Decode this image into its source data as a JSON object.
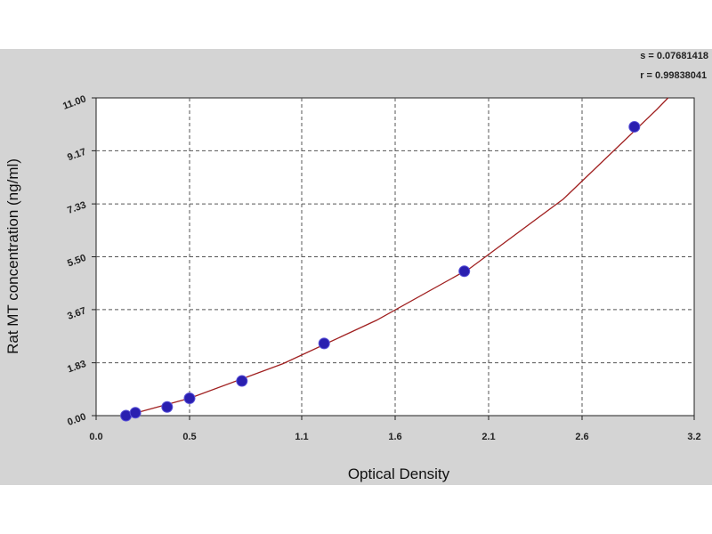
{
  "stats": {
    "s_line": "s = 0.07681418",
    "r_line": "r = 0.99838041"
  },
  "chart_data": {
    "type": "scatter",
    "title": "",
    "xlabel": "Optical Density",
    "ylabel": "Rat MT concentration (ng/ml)",
    "xlim": [
      0.0,
      3.2
    ],
    "ylim": [
      0.0,
      11.0
    ],
    "xticks": [
      0.0,
      0.5,
      1.1,
      1.6,
      2.1,
      2.6,
      3.2
    ],
    "xtick_labels": [
      "0.0",
      "0.5",
      "1.1",
      "1.6",
      "2.1",
      "2.6",
      "3.2"
    ],
    "yticks": [
      0.0,
      1.83,
      3.67,
      5.5,
      7.33,
      9.17,
      11.0
    ],
    "ytick_labels": [
      "0.00",
      "1.83",
      "3.67",
      "5.50",
      "7.33",
      "9.17",
      "11.00"
    ],
    "grid": true,
    "point_color": "#2a1fb0",
    "curve_color": "#a02020",
    "points": [
      {
        "x": 0.16,
        "y": 0.0
      },
      {
        "x": 0.21,
        "y": 0.1
      },
      {
        "x": 0.38,
        "y": 0.3
      },
      {
        "x": 0.5,
        "y": 0.6
      },
      {
        "x": 0.78,
        "y": 1.2
      },
      {
        "x": 1.22,
        "y": 2.5
      },
      {
        "x": 1.97,
        "y": 5.0
      },
      {
        "x": 2.88,
        "y": 10.0
      }
    ],
    "fit_curve": [
      {
        "x": 0.16,
        "y": 0.0
      },
      {
        "x": 0.5,
        "y": 0.6
      },
      {
        "x": 1.0,
        "y": 1.8
      },
      {
        "x": 1.5,
        "y": 3.3
      },
      {
        "x": 2.0,
        "y": 5.1
      },
      {
        "x": 2.5,
        "y": 7.5
      },
      {
        "x": 3.0,
        "y": 10.6
      },
      {
        "x": 3.06,
        "y": 11.0
      }
    ]
  }
}
